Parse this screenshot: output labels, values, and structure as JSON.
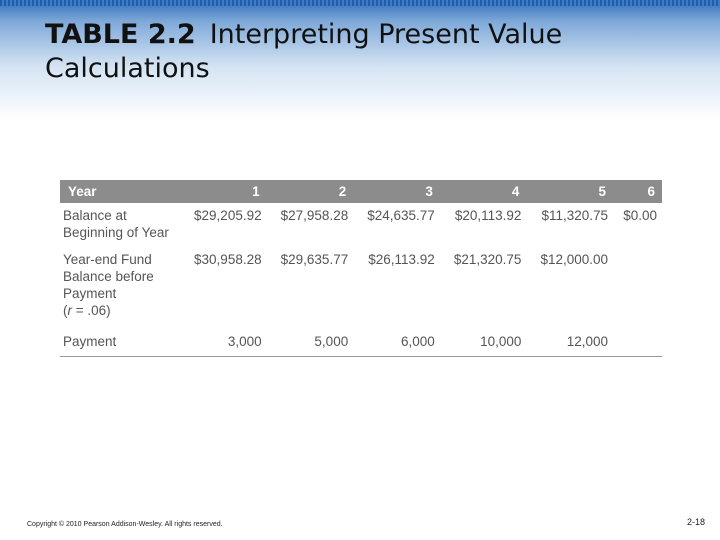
{
  "slide": {
    "title_number": "TABLE 2.2",
    "title_text": "Interpreting Present Value Calculations",
    "footer": "Copyright © 2010 Pearson Addison-Wesley. All rights reserved.",
    "page_number": "2-18"
  },
  "table": {
    "header": [
      "Year",
      "1",
      "2",
      "3",
      "4",
      "5",
      "6"
    ],
    "rows": [
      {
        "label": "Balance at Beginning of Year",
        "values": [
          "$29,205.92",
          "$27,958.28",
          "$24,635.77",
          "$20,113.92",
          "$11,320.75",
          "$0.00"
        ]
      },
      {
        "label_main": "Year-end Fund Balance before Payment",
        "label_rate_var": "r",
        "label_rate_rest": " = .06)",
        "values": [
          "$30,958.28",
          "$29,635.77",
          "$26,113.92",
          "$21,320.75",
          "$12,000.00",
          ""
        ]
      },
      {
        "label": "Payment",
        "values": [
          "3,000",
          "5,000",
          "6,000",
          "10,000",
          "12,000",
          ""
        ]
      }
    ]
  },
  "colors": {
    "header_bg": "#8c8c8c",
    "band_top": "#2f6fb8",
    "text": "#555555"
  }
}
